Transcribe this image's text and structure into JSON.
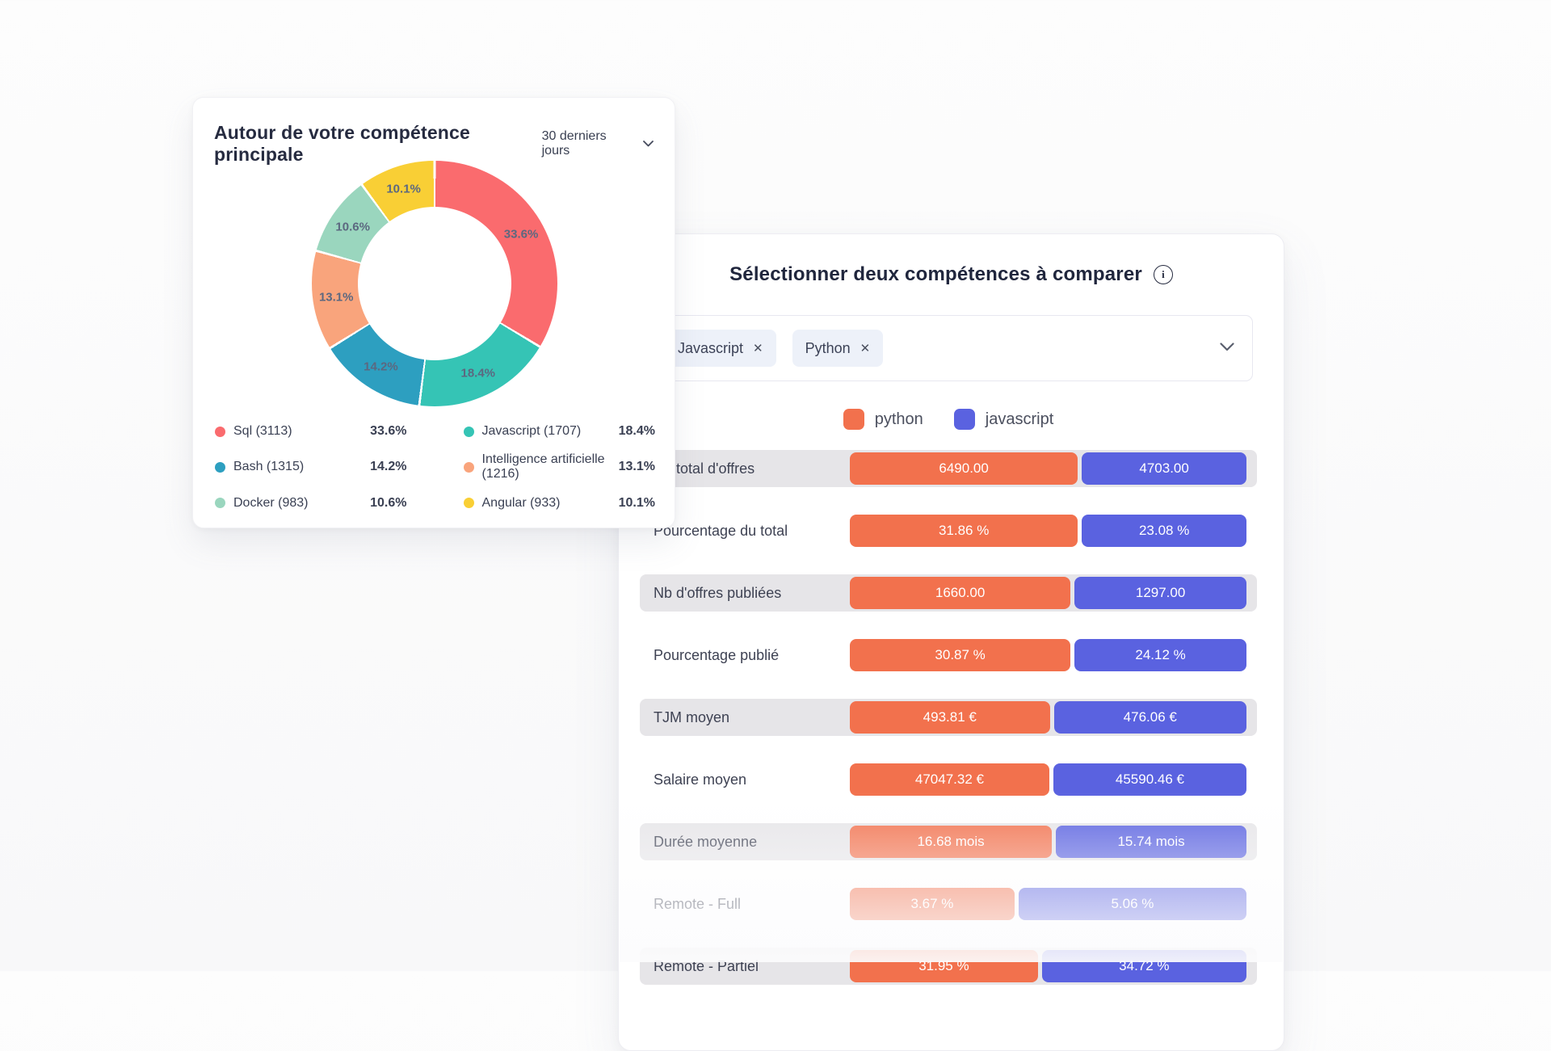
{
  "page": {
    "background": "#fbfbfc"
  },
  "icons": {
    "close": "✕",
    "info": "i"
  },
  "skill_card": {
    "title": "Autour de votre compétence principale",
    "period_dropdown": {
      "label": "30 derniers jours"
    },
    "chart_data": {
      "type": "pie",
      "donut": true,
      "title": "Autour de votre compétence principale",
      "labels": [
        "Sql (3113)",
        "Javascript (1707)",
        "Bash (1315)",
        "Intelligence artificielle (1216)",
        "Docker (983)",
        "Angular (933)"
      ],
      "counts": [
        3113,
        1707,
        1315,
        1216,
        983,
        933
      ],
      "values": [
        33.6,
        18.4,
        14.2,
        13.1,
        10.6,
        10.1
      ],
      "value_suffix": "%",
      "colors": [
        "#FA6B6E",
        "#35C4B5",
        "#2D9FC0",
        "#F9A47C",
        "#9AD6BE",
        "#F9CF35"
      ],
      "legend_position": "bottom"
    },
    "legend": [
      {
        "label": "Sql (3113)",
        "pct": "33.6%",
        "color": "#FA6B6E"
      },
      {
        "label": "Javascript (1707)",
        "pct": "18.4%",
        "color": "#35C4B5"
      },
      {
        "label": "Bash (1315)",
        "pct": "14.2%",
        "color": "#2D9FC0"
      },
      {
        "label": "Intelligence artificielle (1216)",
        "pct": "13.1%",
        "color": "#F9A47C"
      },
      {
        "label": "Docker (983)",
        "pct": "10.6%",
        "color": "#9AD6BE"
      },
      {
        "label": "Angular (933)",
        "pct": "10.1%",
        "color": "#F9CF35"
      }
    ]
  },
  "compare_card": {
    "title": "Sélectionner deux compétences à comparer",
    "selected_skills": [
      {
        "label": "Javascript"
      },
      {
        "label": "Python"
      }
    ],
    "legend": [
      {
        "label": "python",
        "color": "#F2714D"
      },
      {
        "label": "javascript",
        "color": "#5A62E0"
      }
    ],
    "chart_data": {
      "type": "bar",
      "orientation": "horizontal-paired",
      "series": [
        {
          "name": "python",
          "color": "#F2714D"
        },
        {
          "name": "javascript",
          "color": "#5A62E0"
        }
      ],
      "rows": [
        {
          "label": "Nb total d'offres",
          "python": 6490,
          "javascript": 4703,
          "python_display": "6490.00",
          "javascript_display": "4703.00",
          "shaded": true
        },
        {
          "label": "Pourcentage du total",
          "python": 31.86,
          "javascript": 23.08,
          "python_display": "31.86 %",
          "javascript_display": "23.08 %",
          "shaded": false
        },
        {
          "label": "Nb d'offres publiées",
          "python": 1660,
          "javascript": 1297,
          "python_display": "1660.00",
          "javascript_display": "1297.00",
          "shaded": true
        },
        {
          "label": "Pourcentage publié",
          "python": 30.87,
          "javascript": 24.12,
          "python_display": "30.87 %",
          "javascript_display": "24.12 %",
          "shaded": false
        },
        {
          "label": "TJM moyen",
          "python": 493.81,
          "javascript": 476.06,
          "python_display": "493.81 €",
          "javascript_display": "476.06 €",
          "shaded": true
        },
        {
          "label": "Salaire moyen",
          "python": 47047.32,
          "javascript": 45590.46,
          "python_display": "47047.32 €",
          "javascript_display": "45590.46 €",
          "shaded": false
        },
        {
          "label": "Durée moyenne",
          "python": 16.68,
          "javascript": 15.74,
          "python_display": "16.68 mois",
          "javascript_display": "15.74 mois",
          "shaded": true
        },
        {
          "label": "Remote - Full",
          "python": 3.67,
          "javascript": 5.06,
          "python_display": "3.67 %",
          "javascript_display": "5.06 %",
          "shaded": false
        },
        {
          "label": "Remote - Partiel",
          "python": 31.95,
          "javascript": 34.72,
          "python_display": "31.95 %",
          "javascript_display": "34.72 %",
          "shaded": true
        }
      ]
    }
  }
}
